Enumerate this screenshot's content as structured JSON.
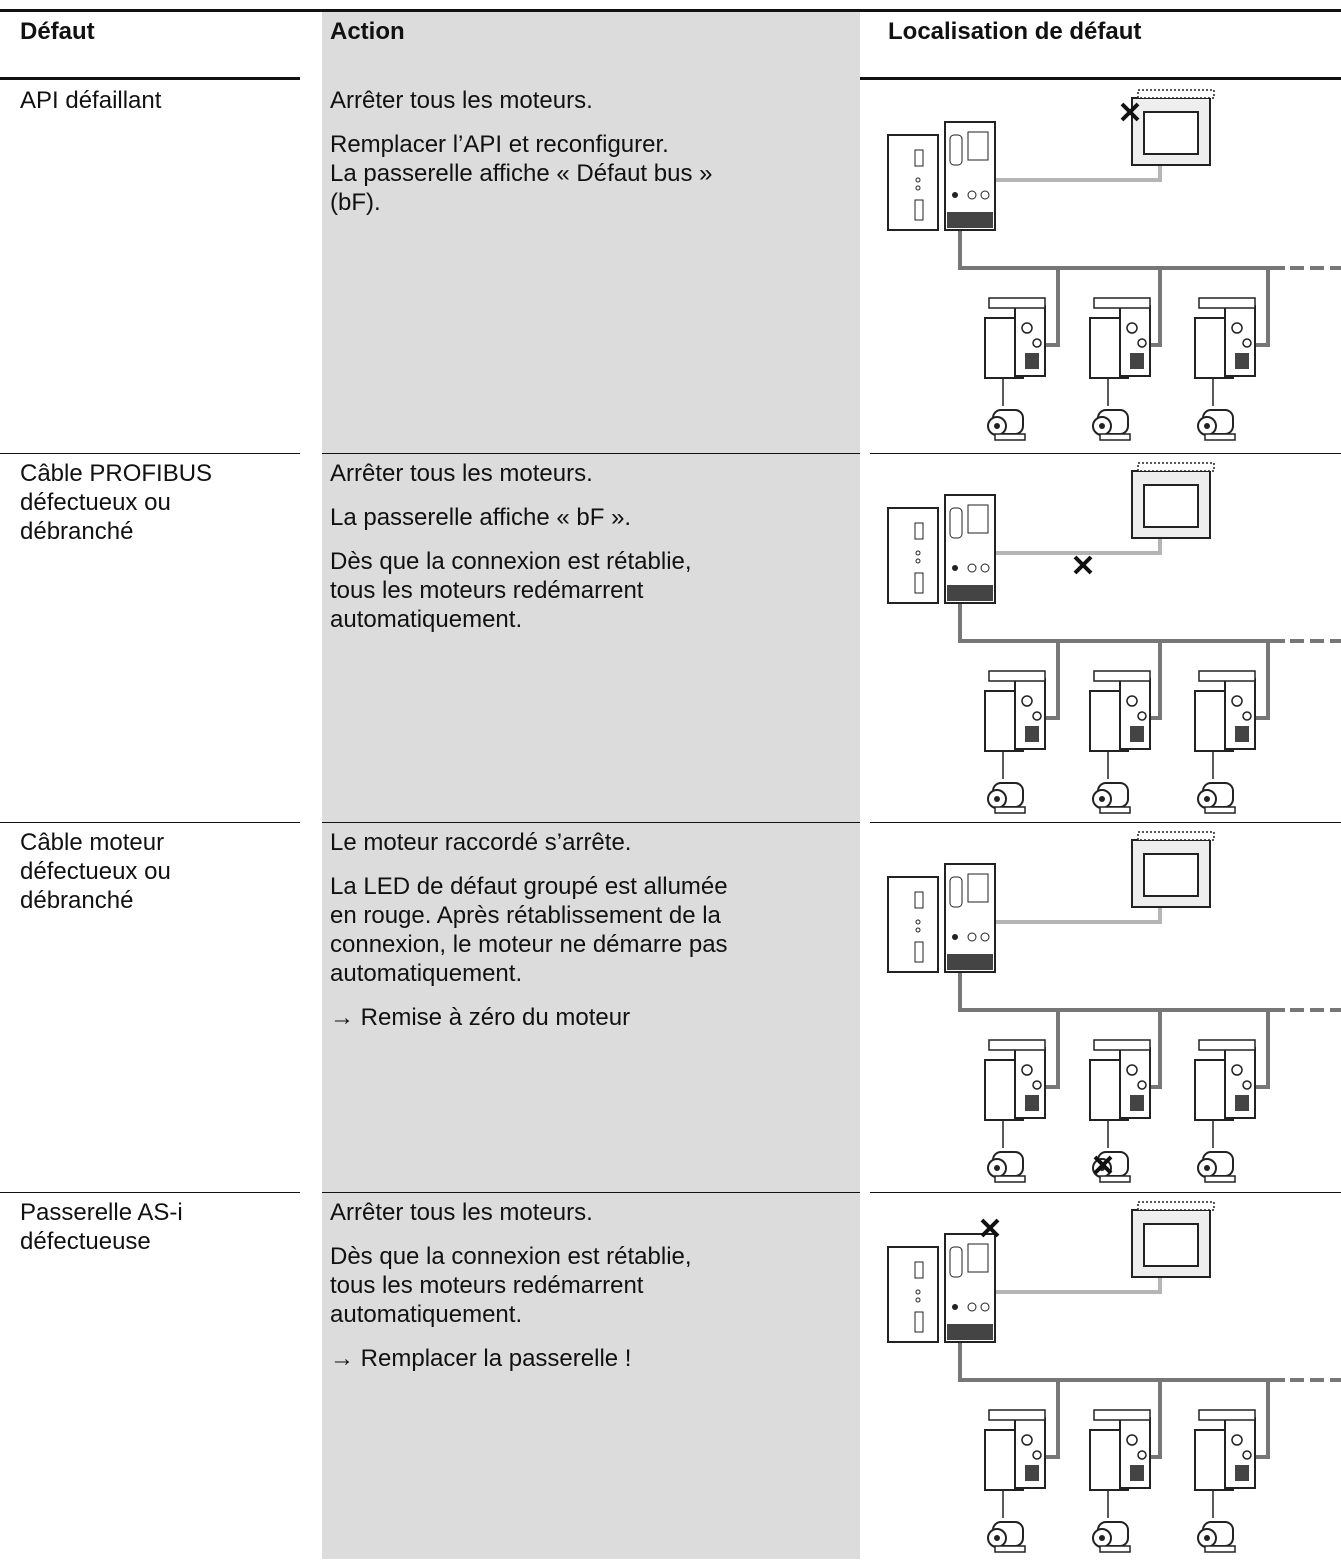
{
  "table": {
    "header": [
      "Défaut",
      "Action",
      "Localisation de défaut"
    ],
    "rows": [
      {
        "fault": "API défaillant",
        "actions": [
          "Arrêter tous les moteurs.",
          "Remplacer l’API et reconfigurer.\nLa passerelle affiche « Défaut bus »\n(bF)."
        ]
      },
      {
        "fault": "Câble PROFIBUS\ndéfectueux ou\ndébranché",
        "actions": [
          "Arrêter tous les moteurs.",
          "La passerelle affiche « bF ».",
          "Dès que la connexion est rétablie,\ntous les moteurs redémarrent\nautomatiquement."
        ]
      },
      {
        "fault": "Câble moteur\ndéfectueux ou\ndébranché",
        "actions": [
          "Le moteur raccordé s’arrête.",
          "La LED de défaut groupé est allumée\nen rouge. Après rétablissement de la\nconnexion, le moteur ne démarre pas\nautomatiquement.",
          "→ Remise à zéro du moteur"
        ]
      },
      {
        "fault": "Passerelle AS-i\ndéfectueuse",
        "actions": [
          "Arrêter tous les moteurs.",
          "Dès que la connexion est rétablie,\ntous les moteurs redémarrent\nautomatiquement.",
          "→ Remplacer la passerelle !"
        ]
      }
    ]
  }
}
